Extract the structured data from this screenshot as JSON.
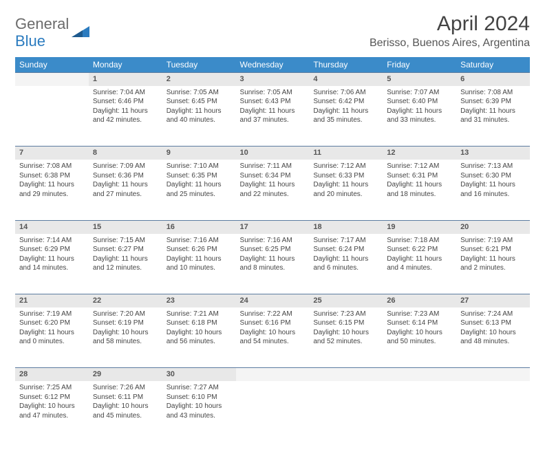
{
  "logo": {
    "line1": "General",
    "line2": "Blue"
  },
  "title": "April 2024",
  "location": "Berisso, Buenos Aires, Argentina",
  "colors": {
    "header_bg": "#3b8bc9",
    "daynum_bg": "#e8e8e8",
    "border": "#5b7ba0",
    "text": "#444444"
  },
  "weekdays": [
    "Sunday",
    "Monday",
    "Tuesday",
    "Wednesday",
    "Thursday",
    "Friday",
    "Saturday"
  ],
  "weeks": [
    {
      "nums": [
        "",
        "1",
        "2",
        "3",
        "4",
        "5",
        "6"
      ],
      "cells": [
        null,
        {
          "sunrise": "7:04 AM",
          "sunset": "6:46 PM",
          "dlh": 11,
          "dlm": 42
        },
        {
          "sunrise": "7:05 AM",
          "sunset": "6:45 PM",
          "dlh": 11,
          "dlm": 40
        },
        {
          "sunrise": "7:05 AM",
          "sunset": "6:43 PM",
          "dlh": 11,
          "dlm": 37
        },
        {
          "sunrise": "7:06 AM",
          "sunset": "6:42 PM",
          "dlh": 11,
          "dlm": 35
        },
        {
          "sunrise": "7:07 AM",
          "sunset": "6:40 PM",
          "dlh": 11,
          "dlm": 33
        },
        {
          "sunrise": "7:08 AM",
          "sunset": "6:39 PM",
          "dlh": 11,
          "dlm": 31
        }
      ]
    },
    {
      "nums": [
        "7",
        "8",
        "9",
        "10",
        "11",
        "12",
        "13"
      ],
      "cells": [
        {
          "sunrise": "7:08 AM",
          "sunset": "6:38 PM",
          "dlh": 11,
          "dlm": 29
        },
        {
          "sunrise": "7:09 AM",
          "sunset": "6:36 PM",
          "dlh": 11,
          "dlm": 27
        },
        {
          "sunrise": "7:10 AM",
          "sunset": "6:35 PM",
          "dlh": 11,
          "dlm": 25
        },
        {
          "sunrise": "7:11 AM",
          "sunset": "6:34 PM",
          "dlh": 11,
          "dlm": 22
        },
        {
          "sunrise": "7:12 AM",
          "sunset": "6:33 PM",
          "dlh": 11,
          "dlm": 20
        },
        {
          "sunrise": "7:12 AM",
          "sunset": "6:31 PM",
          "dlh": 11,
          "dlm": 18
        },
        {
          "sunrise": "7:13 AM",
          "sunset": "6:30 PM",
          "dlh": 11,
          "dlm": 16
        }
      ]
    },
    {
      "nums": [
        "14",
        "15",
        "16",
        "17",
        "18",
        "19",
        "20"
      ],
      "cells": [
        {
          "sunrise": "7:14 AM",
          "sunset": "6:29 PM",
          "dlh": 11,
          "dlm": 14
        },
        {
          "sunrise": "7:15 AM",
          "sunset": "6:27 PM",
          "dlh": 11,
          "dlm": 12
        },
        {
          "sunrise": "7:16 AM",
          "sunset": "6:26 PM",
          "dlh": 11,
          "dlm": 10
        },
        {
          "sunrise": "7:16 AM",
          "sunset": "6:25 PM",
          "dlh": 11,
          "dlm": 8
        },
        {
          "sunrise": "7:17 AM",
          "sunset": "6:24 PM",
          "dlh": 11,
          "dlm": 6
        },
        {
          "sunrise": "7:18 AM",
          "sunset": "6:22 PM",
          "dlh": 11,
          "dlm": 4
        },
        {
          "sunrise": "7:19 AM",
          "sunset": "6:21 PM",
          "dlh": 11,
          "dlm": 2
        }
      ]
    },
    {
      "nums": [
        "21",
        "22",
        "23",
        "24",
        "25",
        "26",
        "27"
      ],
      "cells": [
        {
          "sunrise": "7:19 AM",
          "sunset": "6:20 PM",
          "dlh": 11,
          "dlm": 0
        },
        {
          "sunrise": "7:20 AM",
          "sunset": "6:19 PM",
          "dlh": 10,
          "dlm": 58
        },
        {
          "sunrise": "7:21 AM",
          "sunset": "6:18 PM",
          "dlh": 10,
          "dlm": 56
        },
        {
          "sunrise": "7:22 AM",
          "sunset": "6:16 PM",
          "dlh": 10,
          "dlm": 54
        },
        {
          "sunrise": "7:23 AM",
          "sunset": "6:15 PM",
          "dlh": 10,
          "dlm": 52
        },
        {
          "sunrise": "7:23 AM",
          "sunset": "6:14 PM",
          "dlh": 10,
          "dlm": 50
        },
        {
          "sunrise": "7:24 AM",
          "sunset": "6:13 PM",
          "dlh": 10,
          "dlm": 48
        }
      ]
    },
    {
      "nums": [
        "28",
        "29",
        "30",
        "",
        "",
        "",
        ""
      ],
      "cells": [
        {
          "sunrise": "7:25 AM",
          "sunset": "6:12 PM",
          "dlh": 10,
          "dlm": 47
        },
        {
          "sunrise": "7:26 AM",
          "sunset": "6:11 PM",
          "dlh": 10,
          "dlm": 45
        },
        {
          "sunrise": "7:27 AM",
          "sunset": "6:10 PM",
          "dlh": 10,
          "dlm": 43
        },
        null,
        null,
        null,
        null
      ]
    }
  ]
}
